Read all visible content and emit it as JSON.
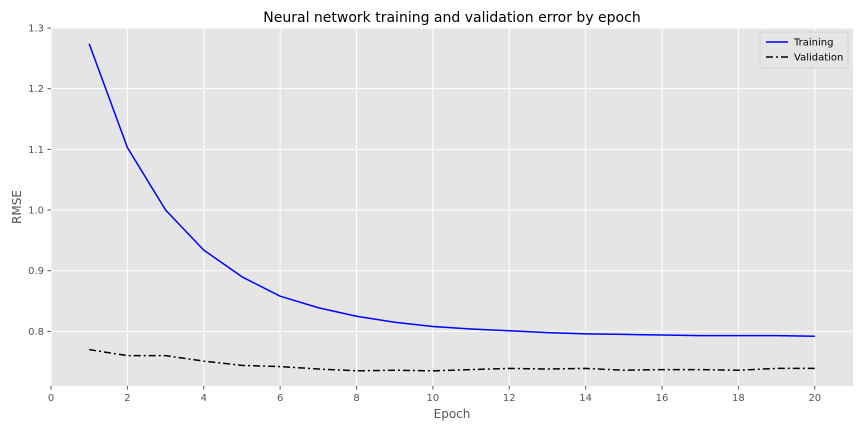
{
  "chart_data": {
    "type": "line",
    "title": "Neural network training and validation error by epoch",
    "xlabel": "Epoch",
    "ylabel": "RMSE",
    "xlim": [
      0,
      21
    ],
    "ylim": [
      0.71,
      1.3
    ],
    "xticks": [
      0,
      2,
      4,
      6,
      8,
      10,
      12,
      14,
      16,
      18,
      20
    ],
    "yticks": [
      0.8,
      0.9,
      1.0,
      1.1,
      1.2,
      1.3
    ],
    "ytick_labels": [
      "0.8",
      "0.9",
      "1.0",
      "1.1",
      "1.2",
      "1.3"
    ],
    "grid": true,
    "legend_position": "top-right",
    "x": [
      1,
      2,
      3,
      4,
      5,
      6,
      7,
      8,
      9,
      10,
      11,
      12,
      13,
      14,
      15,
      16,
      17,
      18,
      19,
      20
    ],
    "series": [
      {
        "name": "Training",
        "color": "#0000ff",
        "dash": "solid",
        "values": [
          1.274,
          1.103,
          1.0,
          0.934,
          0.89,
          0.858,
          0.839,
          0.825,
          0.815,
          0.808,
          0.804,
          0.801,
          0.798,
          0.796,
          0.795,
          0.794,
          0.793,
          0.793,
          0.793,
          0.792
        ]
      },
      {
        "name": "Validation",
        "color": "#000000",
        "dash": "dashdot",
        "values": [
          0.77,
          0.76,
          0.76,
          0.751,
          0.744,
          0.742,
          0.738,
          0.735,
          0.736,
          0.735,
          0.737,
          0.739,
          0.738,
          0.739,
          0.736,
          0.737,
          0.737,
          0.736,
          0.739,
          0.739
        ]
      }
    ]
  },
  "colors": {
    "plot_background": "#e5e5e5",
    "grid": "#ffffff",
    "tick": "#555555"
  }
}
